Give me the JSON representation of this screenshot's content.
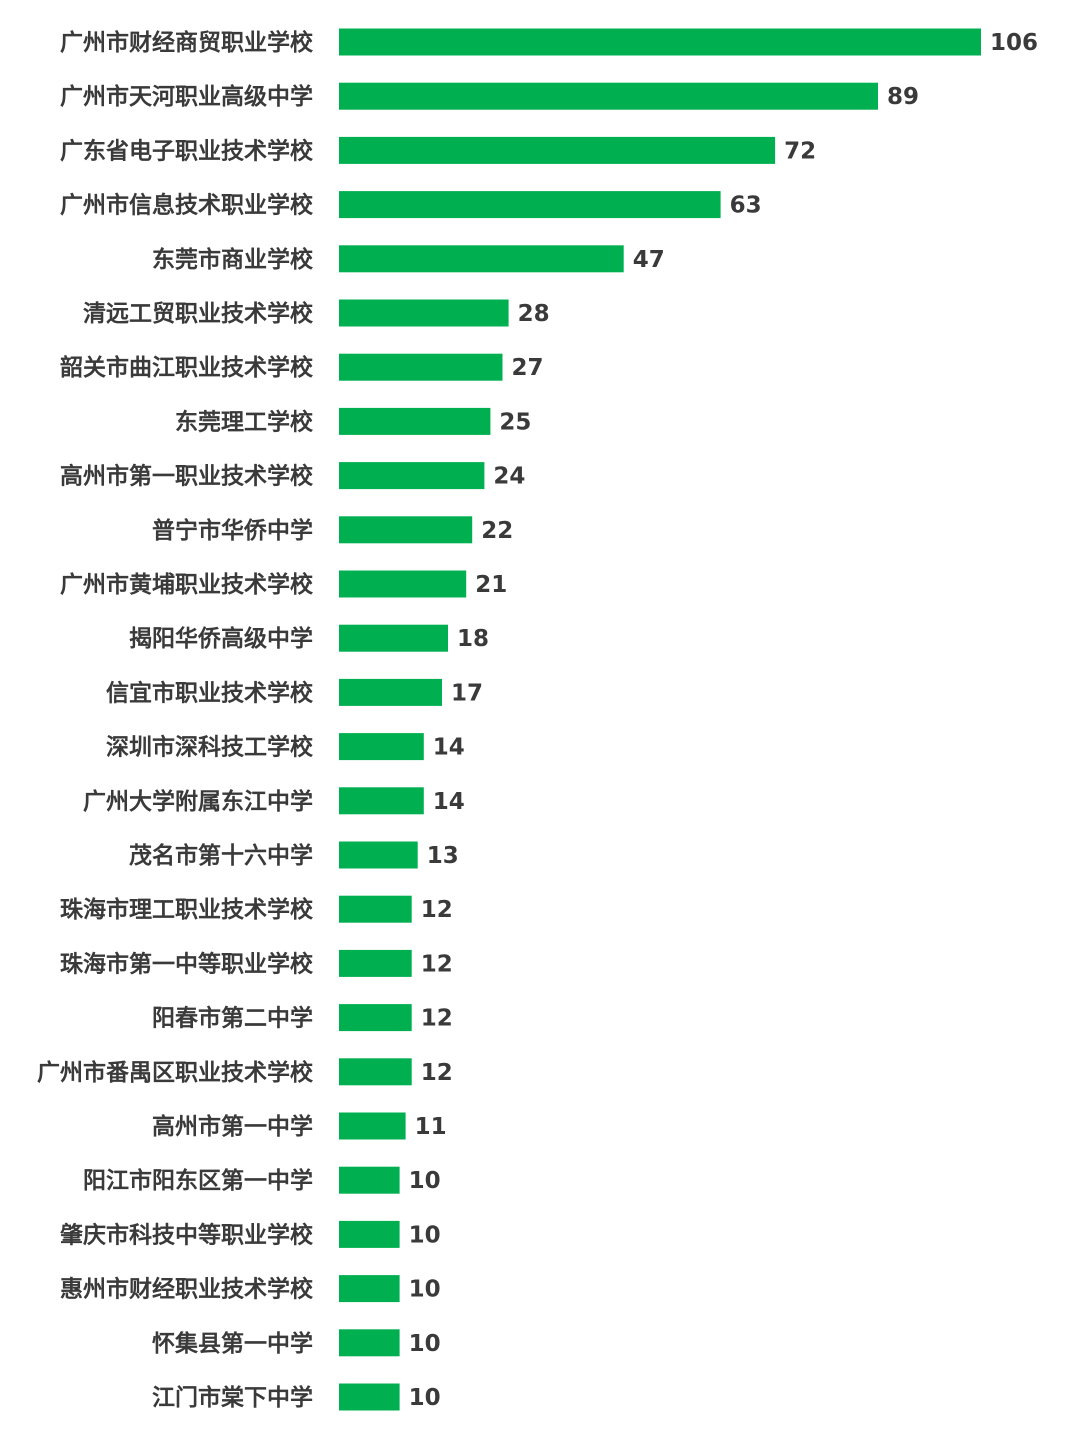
{
  "chart_data": {
    "type": "bar",
    "orientation": "horizontal",
    "title": "",
    "xlabel": "",
    "ylabel": "",
    "grid": false,
    "legend": "none",
    "xlim": [
      0,
      106
    ],
    "bar_color": "#00b050",
    "text_color": "#3a3a3a",
    "categories": [
      "广州市财经商贸职业学校",
      "广州市天河职业高级中学",
      "广东省电子职业技术学校",
      "广州市信息技术职业学校",
      "东莞市商业学校",
      "清远工贸职业技术学校",
      "韶关市曲江职业技术学校",
      "东莞理工学校",
      "高州市第一职业技术学校",
      "普宁市华侨中学",
      "广州市黄埔职业技术学校",
      "揭阳华侨高级中学",
      "信宜市职业技术学校",
      "深圳市深科技工学校",
      "广州大学附属东江中学",
      "茂名市第十六中学",
      "珠海市理工职业技术学校",
      "珠海市第一中等职业学校",
      "阳春市第二中学",
      "广州市番禺区职业技术学校",
      "高州市第一中学",
      "阳江市阳东区第一中学",
      "肇庆市科技中等职业学校",
      "惠州市财经职业技术学校",
      "怀集县第一中学",
      "江门市棠下中学"
    ],
    "values": [
      106,
      89,
      72,
      63,
      47,
      28,
      27,
      25,
      24,
      22,
      21,
      18,
      17,
      14,
      14,
      13,
      12,
      12,
      12,
      12,
      11,
      10,
      10,
      10,
      10,
      10
    ]
  }
}
